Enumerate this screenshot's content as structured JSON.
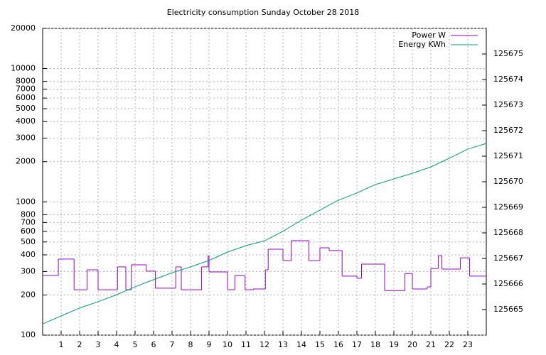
{
  "chart_data": {
    "type": "line",
    "title": "Electricity consumption Sunday October 28 2018",
    "xlim": [
      0,
      24
    ],
    "xticks": [
      1,
      2,
      3,
      4,
      5,
      6,
      7,
      8,
      9,
      10,
      11,
      12,
      13,
      14,
      15,
      16,
      17,
      18,
      19,
      20,
      21,
      22,
      23
    ],
    "ylim": [
      100,
      20000
    ],
    "yscale": "log",
    "yticks": [
      100,
      200,
      300,
      400,
      500,
      600,
      700,
      800,
      1000,
      2000,
      3000,
      4000,
      5000,
      6000,
      7000,
      8000,
      10000,
      20000
    ],
    "y2lim": [
      125664,
      125676
    ],
    "y2ticks": [
      125665,
      125666,
      125667,
      125668,
      125669,
      125670,
      125671,
      125672,
      125673,
      125674,
      125675
    ],
    "grid": true,
    "legend": "top-right",
    "series": [
      {
        "name": "Power W",
        "color": "#9400d3",
        "step": "post",
        "x": [
          0,
          0.85,
          1.7,
          2.4,
          3.0,
          4.05,
          4.5,
          4.8,
          5.6,
          6.1,
          7.2,
          7.5,
          8.6,
          8.95,
          9.0,
          10.0,
          10.4,
          10.95,
          11.4,
          12.05,
          12.2,
          13.0,
          13.45,
          14.4,
          15.0,
          15.5,
          16.2,
          17.0,
          17.25,
          18.5,
          19.6,
          20.0,
          20.8,
          21.0,
          21.4,
          21.6,
          22.6,
          23.1
        ],
        "values": [
          280,
          372,
          219,
          309,
          219,
          325,
          219,
          337,
          302,
          225,
          325,
          219,
          325,
          394,
          298,
          219,
          280,
          219,
          222,
          309,
          441,
          362,
          511,
          362,
          452,
          431,
          277,
          267,
          341,
          216,
          290,
          222,
          230,
          316,
          394,
          313,
          380,
          277
        ]
      },
      {
        "name": "Energy KWh",
        "color": "#009e73",
        "axis": "y2",
        "x": [
          0,
          1,
          2,
          3,
          4,
          5,
          6,
          7,
          8,
          9,
          10,
          11,
          12,
          13,
          14,
          15,
          16,
          17,
          18,
          19,
          20,
          21,
          22,
          23,
          24
        ],
        "values": [
          125664.44,
          125664.75,
          125665.06,
          125665.31,
          125665.58,
          125665.89,
          125666.17,
          125666.44,
          125666.67,
          125666.92,
          125667.25,
          125667.5,
          125667.69,
          125668.06,
          125668.5,
          125668.89,
          125669.28,
          125669.56,
          125669.89,
          125670.11,
          125670.33,
          125670.58,
          125670.92,
          125671.28,
          125671.5
        ]
      }
    ]
  }
}
